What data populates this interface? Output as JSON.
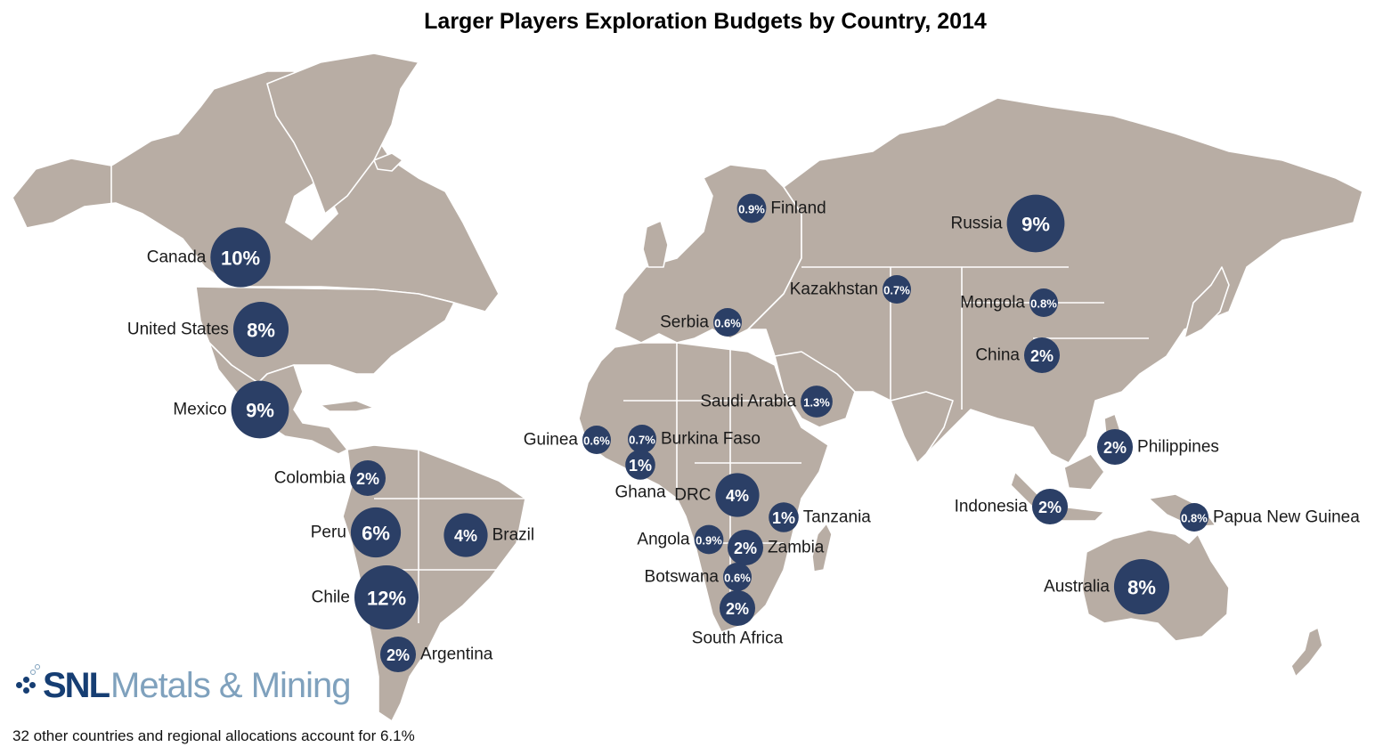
{
  "chart_data": {
    "type": "bubble-map",
    "title": "Larger Players Exploration Budgets by Country, 2014",
    "unit": "% of budget",
    "countries": [
      {
        "name": "Canada",
        "label": "10%",
        "value": 10
      },
      {
        "name": "United States",
        "label": "8%",
        "value": 8
      },
      {
        "name": "Mexico",
        "label": "9%",
        "value": 9
      },
      {
        "name": "Colombia",
        "label": "2%",
        "value": 2
      },
      {
        "name": "Peru",
        "label": "6%",
        "value": 6
      },
      {
        "name": "Brazil",
        "label": "4%",
        "value": 4
      },
      {
        "name": "Chile",
        "label": "12%",
        "value": 12
      },
      {
        "name": "Argentina",
        "label": "2%",
        "value": 2
      },
      {
        "name": "Finland",
        "label": "0.9%",
        "value": 0.9
      },
      {
        "name": "Serbia",
        "label": "0.6%",
        "value": 0.6
      },
      {
        "name": "Russia",
        "label": "9%",
        "value": 9
      },
      {
        "name": "Kazakhstan",
        "label": "0.7%",
        "value": 0.7
      },
      {
        "name": "Mongola",
        "label": "0.8%",
        "value": 0.8
      },
      {
        "name": "China",
        "label": "2%",
        "value": 2
      },
      {
        "name": "Saudi Arabia",
        "label": "1.3%",
        "value": 1.3
      },
      {
        "name": "Guinea",
        "label": "0.6%",
        "value": 0.6
      },
      {
        "name": "Burkina Faso",
        "label": "0.7%",
        "value": 0.7
      },
      {
        "name": "Ghana",
        "label": "1%",
        "value": 1
      },
      {
        "name": "DRC",
        "label": "4%",
        "value": 4
      },
      {
        "name": "Tanzania",
        "label": "1%",
        "value": 1
      },
      {
        "name": "Angola",
        "label": "0.9%",
        "value": 0.9
      },
      {
        "name": "Zambia",
        "label": "2%",
        "value": 2
      },
      {
        "name": "Botswana",
        "label": "0.6%",
        "value": 0.6
      },
      {
        "name": "South Africa",
        "label": "2%",
        "value": 2
      },
      {
        "name": "Philippines",
        "label": "2%",
        "value": 2
      },
      {
        "name": "Indonesia",
        "label": "2%",
        "value": 2
      },
      {
        "name": "Papua New Guinea",
        "label": "0.8%",
        "value": 0.8
      },
      {
        "name": "Australia",
        "label": "8%",
        "value": 8
      }
    ],
    "other": {
      "count": 32,
      "value": 6.1
    }
  },
  "colors": {
    "land": "#b8ada4",
    "bubble": "#2b3f66",
    "logo_dark": "#163e73",
    "logo_light": "#7fa1bd"
  },
  "logo": {
    "brand": "SNL",
    "name": "Metals & Mining"
  },
  "footnote": "32 other countries and regional allocations account for 6.1%"
}
